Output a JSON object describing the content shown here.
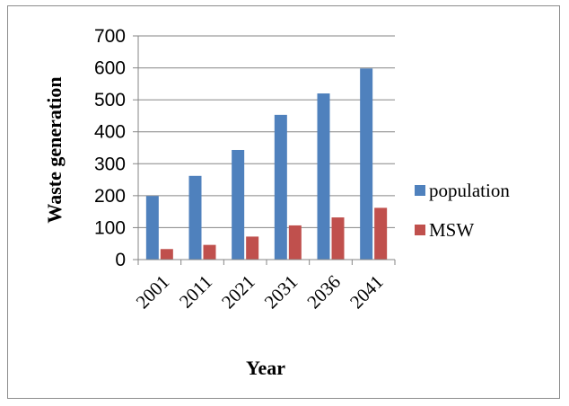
{
  "chart_data": {
    "type": "bar",
    "title": "",
    "xlabel": "Year",
    "ylabel": "Waste generation",
    "categories": [
      "2001",
      "2011",
      "2021",
      "2031",
      "2036",
      "2041"
    ],
    "series": [
      {
        "name": "population",
        "color": "#4f81bd",
        "values": [
          199,
          262,
          343,
          453,
          520,
          598
        ]
      },
      {
        "name": "MSW",
        "color": "#c0504d",
        "values": [
          33,
          46,
          72,
          107,
          132,
          162
        ]
      }
    ],
    "ylim": [
      0,
      700
    ],
    "yticks": [
      "0",
      "100",
      "200",
      "300",
      "400",
      "500",
      "600",
      "700"
    ],
    "grid": true,
    "legend_position": "right"
  }
}
